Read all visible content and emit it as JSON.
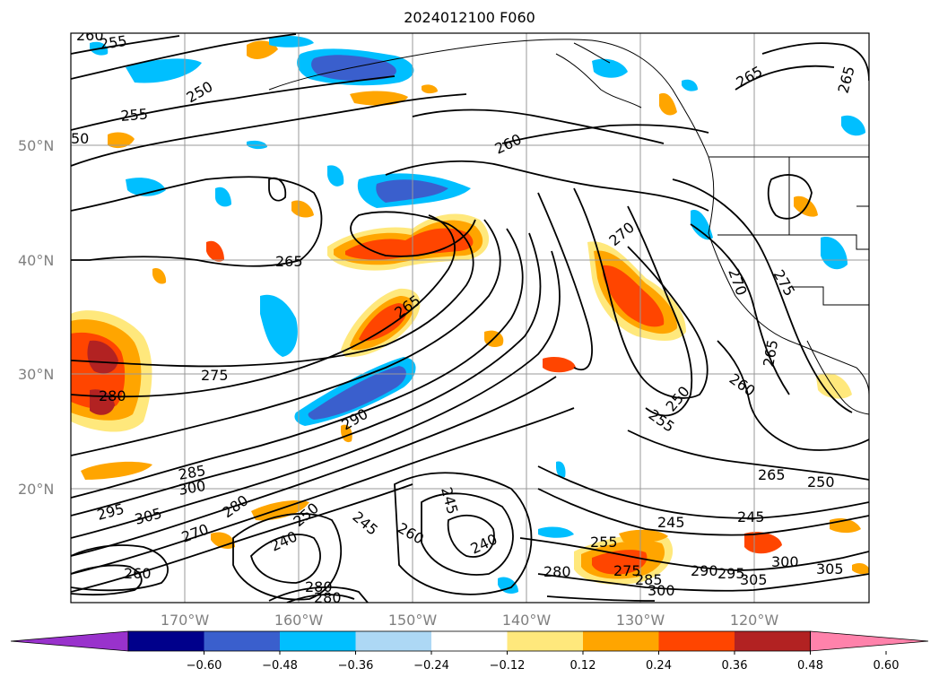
{
  "title": "2024012100 F060",
  "lat_labels": [
    "50°N",
    "40°N",
    "30°N",
    "20°N"
  ],
  "lon_labels": [
    "170°W",
    "160°W",
    "150°W",
    "140°W",
    "130°W",
    "120°W"
  ],
  "colorbar": {
    "colors": [
      "#9932cc",
      "#00008b",
      "#3a5fcd",
      "#00bfff",
      "#add8f5",
      "#ffffff",
      "#ffe87c",
      "#ffa500",
      "#ff4500",
      "#b22222",
      "#ff82ab"
    ],
    "ticks": [
      "−0.60",
      "−0.48",
      "−0.36",
      "−0.24",
      "−0.12",
      "0.12",
      "0.24",
      "0.36",
      "0.48",
      "0.60"
    ]
  },
  "contour_labels": [
    {
      "text": "260"
    },
    {
      "text": "255"
    },
    {
      "text": "250"
    },
    {
      "text": "255"
    },
    {
      "text": "50"
    },
    {
      "text": "260"
    },
    {
      "text": "265"
    },
    {
      "text": "265"
    },
    {
      "text": "265"
    },
    {
      "text": "270"
    },
    {
      "text": "265"
    },
    {
      "text": "275"
    },
    {
      "text": "280"
    },
    {
      "text": "270"
    },
    {
      "text": "275"
    },
    {
      "text": "265"
    },
    {
      "text": "260"
    },
    {
      "text": "250"
    },
    {
      "text": "255"
    },
    {
      "text": "290"
    },
    {
      "text": "285"
    },
    {
      "text": "300"
    },
    {
      "text": "295"
    },
    {
      "text": "305"
    },
    {
      "text": "280"
    },
    {
      "text": "250"
    },
    {
      "text": "245"
    },
    {
      "text": "270"
    },
    {
      "text": "240"
    },
    {
      "text": "260"
    },
    {
      "text": "245"
    },
    {
      "text": "240"
    },
    {
      "text": "255"
    },
    {
      "text": "245"
    },
    {
      "text": "245"
    },
    {
      "text": "265"
    },
    {
      "text": "250"
    },
    {
      "text": "275"
    },
    {
      "text": "285"
    },
    {
      "text": "280"
    },
    {
      "text": "290"
    },
    {
      "text": "295"
    },
    {
      "text": "300"
    },
    {
      "text": "305"
    },
    {
      "text": "305"
    },
    {
      "text": "300"
    },
    {
      "text": "260"
    },
    {
      "text": "280"
    },
    {
      "text": "280"
    }
  ]
}
